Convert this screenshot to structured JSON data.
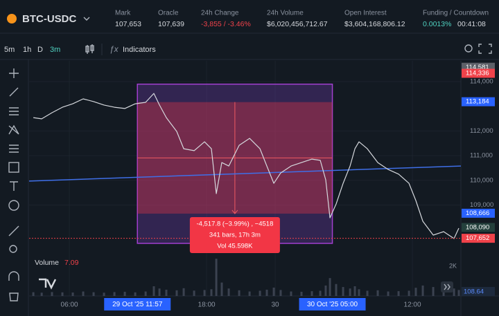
{
  "header": {
    "symbol": "BTC-USDC",
    "stats": [
      {
        "label": "Mark",
        "value": "107,653"
      },
      {
        "label": "Oracle",
        "value": "107,639"
      },
      {
        "label": "24h Change",
        "value": "-3,855 / -3.46%",
        "color": "#f0424a"
      },
      {
        "label": "24h Volume",
        "value": "$6,020,456,712.67"
      },
      {
        "label": "Open Interest",
        "value": "$3,604,168,806.12"
      },
      {
        "label": "Funding / Countdown",
        "value": "0.0013%",
        "color": "#50d2c1",
        "value2": "00:41:08"
      }
    ]
  },
  "toolbar": {
    "intervals": [
      {
        "label": "5m"
      },
      {
        "label": "1h"
      },
      {
        "label": "D"
      },
      {
        "label": "3m",
        "active": true
      }
    ],
    "indicators": "Indicators"
  },
  "chart_data": [
    {
      "type": "line",
      "color": "#d6d9de",
      "grid": true,
      "x": [
        2.85,
        3.58,
        4.48,
        5.39,
        6.3,
        7.21,
        8.12,
        9.03,
        9.94,
        10.85,
        11.76,
        12.67,
        13.39,
        13.88,
        14.48,
        15.39,
        16.0,
        16.91,
        17.82,
        18.42,
        18.85,
        19.33,
        19.94,
        20.85,
        21.76,
        22.67,
        23.27,
        23.88,
        24.48,
        25.39,
        26.3,
        27.21,
        27.94,
        28.42,
        28.79,
        29.33,
        29.94,
        30.55,
        30.97,
        31.33,
        32.06,
        32.97,
        33.88,
        34.79,
        35.7,
        36.3,
        36.91,
        37.82,
        38.73,
        39.64,
        40.06
      ],
      "values": [
        112540,
        112490,
        112740,
        112960,
        113100,
        113300,
        113190,
        113050,
        112960,
        112910,
        113100,
        113160,
        113520,
        113050,
        112540,
        111980,
        111280,
        111200,
        111560,
        111280,
        109460,
        110720,
        110580,
        111420,
        111700,
        111280,
        110580,
        109880,
        110300,
        110580,
        110720,
        110860,
        110810,
        110020,
        108480,
        109040,
        109880,
        110580,
        111280,
        111560,
        111280,
        110720,
        110440,
        110250,
        109880,
        109180,
        108340,
        107780,
        107920,
        107640,
        108060
      ],
      "xlim": [
        2.48,
        40.24
      ],
      "ylim": [
        106940,
        114840
      ],
      "xticks": [
        {
          "value": 6,
          "label": "06:00"
        },
        {
          "value": 18,
          "label": "18:00"
        },
        {
          "value": 24,
          "label": "30"
        },
        {
          "value": 36,
          "label": "12:00"
        }
      ],
      "yticks": [
        {
          "value": 114000,
          "label": "114,000"
        },
        {
          "value": 112000,
          "label": "112,000"
        },
        {
          "value": 111000,
          "label": "111,000"
        },
        {
          "value": 110000,
          "label": "110,000"
        },
        {
          "value": 109000,
          "label": "109,000"
        }
      ],
      "price_tags": [
        {
          "value": 114581,
          "label": "114,581",
          "color": "#5d6068"
        },
        {
          "value": 114336,
          "label": "114,336",
          "color": "#f0424a"
        },
        {
          "value": 113184,
          "label": "113,184",
          "color": "#2962ff"
        },
        {
          "value": 108666,
          "label": "108,666",
          "color": "#2962ff"
        },
        {
          "value": 108090,
          "label": "108,090",
          "color": "#24403c"
        },
        {
          "value": 107652,
          "label": "107,652",
          "color": "#f0424a",
          "dashed": true
        }
      ],
      "trend_line": {
        "x": [
          2.48,
          40.24
        ],
        "y": [
          109970,
          110580
        ],
        "color": "#3f6fe8"
      },
      "measure": {
        "x": [
          11.95,
          29
        ],
        "y": [
          113168,
          108650
        ],
        "labels": [
          "-4,517.8 (−3.99%) , −4518",
          "341 bars, 17h 3m",
          "Vol 45.598K"
        ],
        "x_labels": [
          {
            "value": 11.95,
            "label": "29 Oct '25 11:57"
          },
          {
            "value": 29,
            "label": "30 Oct '25 05:00"
          }
        ]
      }
    },
    {
      "type": "bar",
      "title": "Volume",
      "last_value": 7.09,
      "color": "#3b4250",
      "tag": "108.64",
      "x": [
        2.85,
        3.58,
        4.48,
        5.39,
        6.3,
        7.21,
        8.12,
        9.03,
        9.94,
        10.85,
        11.76,
        12.67,
        13.39,
        13.88,
        14.48,
        15.39,
        16.0,
        16.91,
        17.82,
        18.42,
        18.85,
        19.33,
        19.94,
        20.85,
        21.76,
        22.67,
        23.27,
        23.88,
        24.48,
        25.39,
        26.3,
        27.21,
        27.94,
        28.42,
        28.79,
        29.33,
        29.94,
        30.55,
        30.97,
        31.33,
        32.06,
        32.97,
        33.88,
        34.79,
        35.7,
        36.3,
        36.91,
        37.82,
        38.73,
        39.64,
        40.06
      ],
      "values": [
        250,
        220,
        260,
        240,
        230,
        300,
        250,
        220,
        260,
        280,
        240,
        300,
        650,
        500,
        420,
        380,
        520,
        360,
        400,
        450,
        2500,
        900,
        500,
        380,
        300,
        350,
        420,
        560,
        400,
        300,
        280,
        320,
        350,
        700,
        1200,
        800,
        600,
        500,
        650,
        450,
        350,
        380,
        300,
        320,
        350,
        550,
        700,
        600,
        450,
        500,
        400
      ],
      "xlim": [
        2.48,
        40.24
      ],
      "ylim": [
        0,
        2600
      ],
      "yticks": [
        {
          "value": 2000,
          "label": "2K"
        }
      ]
    }
  ]
}
